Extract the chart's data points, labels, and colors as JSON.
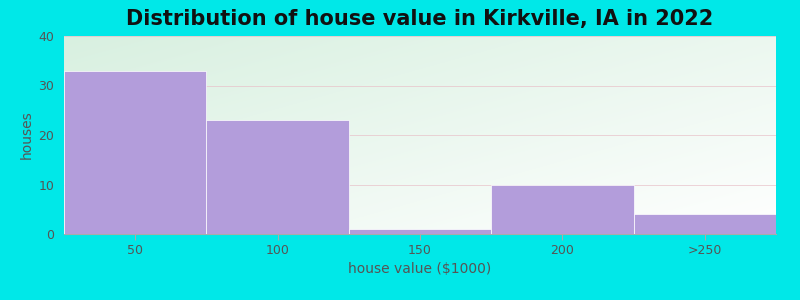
{
  "title": "Distribution of house value in Kirkville, IA in 2022",
  "xlabel": "house value ($1000)",
  "ylabel": "houses",
  "categories": [
    "50",
    "100",
    "150",
    "200",
    ">250"
  ],
  "values": [
    33,
    23,
    1,
    10,
    4
  ],
  "bar_color": "#b39ddb",
  "ylim": [
    0,
    40
  ],
  "yticks": [
    0,
    10,
    20,
    30,
    40
  ],
  "background_outer": "#00e8e8",
  "plot_bg_color1": "#d8f0e0",
  "plot_bg_color2": "#ffffff",
  "grid_color": "#e8c0c8",
  "title_fontsize": 15,
  "axis_label_fontsize": 10,
  "tick_fontsize": 9,
  "tick_color": "#555555",
  "label_color": "#555555"
}
